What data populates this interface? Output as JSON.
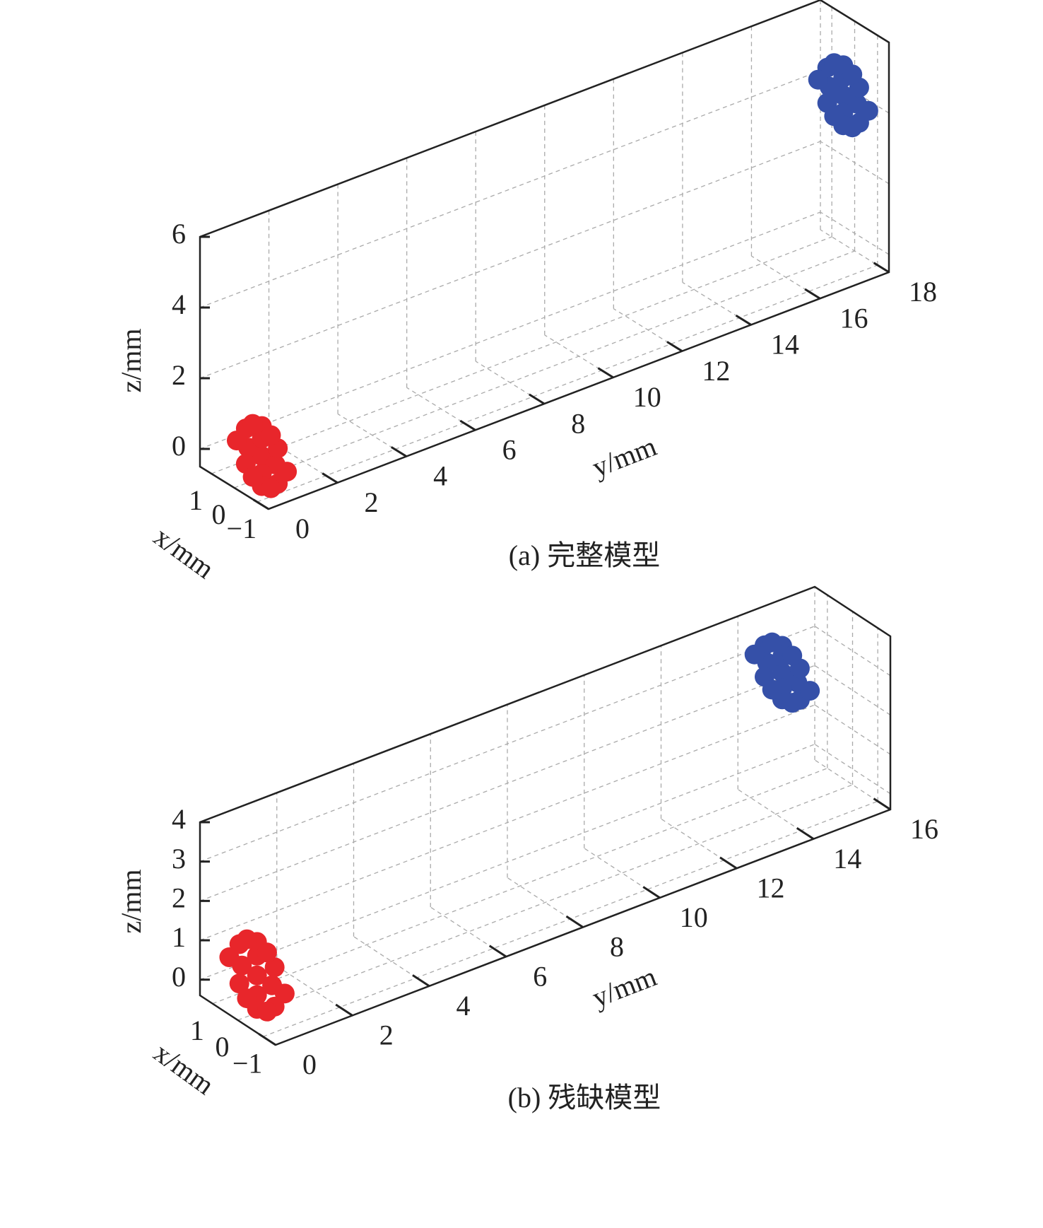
{
  "chart_data": [
    {
      "type": "scatter3d",
      "caption": "(a) 完整模型",
      "xlabel": "x/mm",
      "ylabel": "y/mm",
      "zlabel": "z/mm",
      "xlim": [
        -1.5,
        1.5
      ],
      "ylim": [
        0,
        18
      ],
      "zlim": [
        -0.5,
        6
      ],
      "xticks": [
        1,
        0,
        {
          "value": -1,
          "label": "−1"
        }
      ],
      "yticks": [
        0,
        2,
        4,
        6,
        8,
        10,
        12,
        14,
        16,
        18
      ],
      "zticks": [
        0,
        2,
        4,
        6
      ],
      "grid": true,
      "series": [
        {
          "color": "#e8262b",
          "x": [
            0,
            0.6,
            -0.6,
            0,
            0,
            0.7,
            -0.7,
            0.7,
            -0.7,
            1.1,
            -1.1,
            0,
            0,
            0.4,
            -0.4,
            0.4,
            -0.4
          ],
          "y": [
            0.8,
            0.8,
            0.8,
            0.8,
            0.8,
            0.8,
            0.8,
            0.8,
            0.8,
            0.8,
            0.8,
            0.8,
            0.8,
            0.8,
            0.8,
            0.8,
            0.8
          ],
          "z": [
            0.1,
            0.1,
            0.1,
            0.6,
            -0.4,
            0.6,
            0.6,
            -0.4,
            -0.4,
            0.1,
            0.1,
            0.95,
            -0.75,
            0.85,
            -0.65,
            -0.65,
            0.85
          ]
        },
        {
          "color": "#3550a8",
          "x": [
            0.2,
            0.8,
            -0.4,
            0.2,
            0.2,
            0.9,
            -0.5,
            0.9,
            -0.5,
            1.3,
            -0.9,
            0.2,
            0.2,
            0.6,
            -0.2,
            0.6,
            -0.2
          ],
          "y": [
            17.8,
            17.8,
            17.8,
            17.8,
            17.8,
            17.8,
            17.8,
            17.8,
            17.8,
            17.8,
            17.8,
            17.8,
            17.8,
            17.8,
            17.8,
            17.8,
            17.8
          ],
          "z": [
            3.9,
            3.9,
            3.9,
            4.4,
            3.4,
            4.4,
            4.4,
            3.4,
            3.4,
            3.9,
            3.9,
            4.75,
            3.05,
            4.65,
            3.15,
            3.15,
            4.65
          ]
        }
      ]
    },
    {
      "type": "scatter3d",
      "caption": "(b) 残缺模型",
      "xlabel": "x/mm",
      "ylabel": "y/mm",
      "zlabel": "z/mm",
      "xlim": [
        -1.5,
        1.5
      ],
      "ylim": [
        0,
        16
      ],
      "zlim": [
        -0.4,
        4
      ],
      "xticks": [
        1,
        0,
        {
          "value": -1,
          "label": "−1"
        }
      ],
      "yticks": [
        0,
        2,
        4,
        6,
        8,
        10,
        12,
        14,
        16
      ],
      "zticks": [
        0,
        1,
        2,
        3,
        4
      ],
      "grid": true,
      "series": [
        {
          "color": "#e8262b",
          "x": [
            0,
            0.6,
            -0.6,
            0,
            0,
            0.7,
            -0.7,
            0.7,
            -0.7,
            1.1,
            -1.1,
            0,
            0,
            0.4,
            -0.4,
            0.4,
            -0.4
          ],
          "y": [
            0.5,
            0.5,
            0.5,
            0.5,
            0.5,
            0.5,
            0.5,
            0.5,
            0.5,
            0.5,
            0.5,
            0.5,
            0.5,
            0.5,
            0.5,
            0.5,
            0.5
          ],
          "z": [
            0.55,
            0.55,
            0.55,
            1.05,
            0.05,
            1.05,
            1.05,
            0.05,
            0.05,
            0.55,
            0.55,
            1.4,
            -0.3,
            1.3,
            -0.2,
            -0.2,
            1.3
          ]
        },
        {
          "color": "#3550a8",
          "x": [
            0.2,
            0.8,
            -0.4,
            0.2,
            0.2,
            0.9,
            -0.5,
            0.9,
            -0.5,
            1.3,
            -0.9,
            0.2,
            0.2,
            0.6,
            -0.2,
            0.6,
            -0.2
          ],
          "y": [
            14.3,
            14.3,
            14.3,
            14.3,
            14.3,
            14.3,
            14.3,
            14.3,
            14.3,
            14.3,
            14.3,
            14.3,
            14.3,
            14.3,
            14.3,
            14.3,
            14.3
          ],
          "z": [
            3.0,
            3.0,
            3.0,
            3.4,
            2.6,
            3.4,
            3.4,
            2.6,
            2.6,
            3.0,
            3.0,
            3.68,
            2.32,
            3.6,
            2.4,
            2.4,
            3.6
          ]
        }
      ]
    }
  ]
}
